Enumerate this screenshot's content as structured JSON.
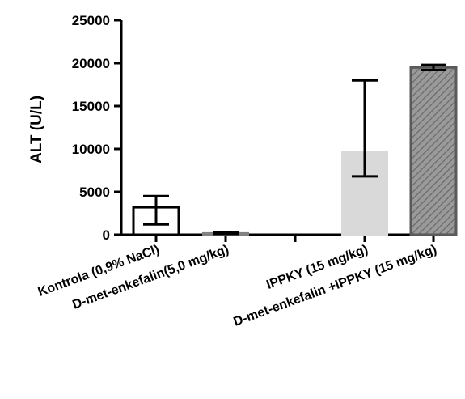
{
  "chart_data": {
    "type": "bar",
    "ylabel": "ALT (U/L)",
    "xlabel": "",
    "title": "",
    "ylim": [
      0,
      25000
    ],
    "yticks": [
      0,
      5000,
      10000,
      15000,
      20000,
      25000
    ],
    "grid": false,
    "categories": [
      "Kontrola (0,9% NaCl)",
      "D-met-enkefalin(5,0 mg/kg)",
      "",
      "IPPKY (15 mg/kg)",
      "D-met-enkefalin +IPPKY (15 mg/kg)"
    ],
    "values": [
      3200,
      200,
      null,
      9700,
      19500
    ],
    "error_low": [
      1200,
      100,
      null,
      6800,
      19200
    ],
    "error_high": [
      4500,
      300,
      null,
      18000,
      19800
    ],
    "bar_styles": [
      {
        "fill": "#ffffff",
        "stroke": "#000000",
        "pattern": "none"
      },
      {
        "fill": "#b0b0b0",
        "stroke": "#808080",
        "pattern": "none"
      },
      {
        "fill": "none",
        "stroke": "none",
        "pattern": "none"
      },
      {
        "fill": "#d9d9d9",
        "stroke": "#d9d9d9",
        "pattern": "none"
      },
      {
        "fill": "#9a9a9a",
        "stroke": "#5a5a5a",
        "pattern": "hatch"
      }
    ]
  }
}
